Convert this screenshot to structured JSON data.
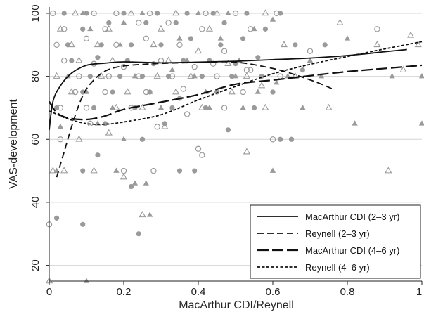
{
  "chart_data": {
    "type": "scatter",
    "xlabel": "MacArthur CDI/Reynell",
    "ylabel": "VAS-development",
    "xlim": [
      0,
      1
    ],
    "ylim": [
      15,
      102
    ],
    "xticks": [
      0,
      0.2,
      0.4,
      0.6,
      0.8,
      1
    ],
    "xtick_labels": [
      "0",
      "0.2",
      "0.4",
      "0.6",
      "0.8",
      "1"
    ],
    "yticks": [
      20,
      40,
      60,
      80,
      100
    ],
    "ytick_labels": [
      "20",
      "40",
      "60",
      "80",
      "100"
    ],
    "grid": "horizontal",
    "legend_position": "bottom-right",
    "colors": {
      "points": "#9a9a9a",
      "lines": "#111111",
      "grid": "#d4d4d4"
    },
    "marker_groups": [
      {
        "marker": "filled-circle",
        "points": [
          [
            0.04,
            100
          ],
          [
            0.1,
            100
          ],
          [
            0.2,
            100
          ],
          [
            0.29,
            100
          ],
          [
            0.37,
            100
          ],
          [
            0.44,
            100
          ],
          [
            0.53,
            100
          ],
          [
            0.62,
            100
          ],
          [
            0.09,
            95
          ],
          [
            0.16,
            97
          ],
          [
            0.26,
            97
          ],
          [
            0.34,
            97
          ],
          [
            0.47,
            97
          ],
          [
            0.58,
            95
          ],
          [
            0.05,
            90
          ],
          [
            0.14,
            90
          ],
          [
            0.22,
            90
          ],
          [
            0.3,
            90
          ],
          [
            0.38,
            92
          ],
          [
            0.46,
            90
          ],
          [
            0.52,
            92
          ],
          [
            0.66,
            90
          ],
          [
            0.74,
            90
          ],
          [
            0.06,
            85
          ],
          [
            0.13,
            86
          ],
          [
            0.21,
            85
          ],
          [
            0.28,
            84
          ],
          [
            0.36,
            85
          ],
          [
            0.43,
            85
          ],
          [
            0.5,
            84
          ],
          [
            0.56,
            86
          ],
          [
            0.11,
            80
          ],
          [
            0.19,
            80
          ],
          [
            0.25,
            80
          ],
          [
            0.32,
            80
          ],
          [
            0.41,
            80
          ],
          [
            0.49,
            80
          ],
          [
            0.57,
            80
          ],
          [
            0.68,
            82
          ],
          [
            0.09,
            75
          ],
          [
            0.17,
            75
          ],
          [
            0.27,
            75
          ],
          [
            0.35,
            73
          ],
          [
            0.45,
            75
          ],
          [
            0.6,
            75
          ],
          [
            0.02,
            70
          ],
          [
            0.12,
            70
          ],
          [
            0.23,
            70
          ],
          [
            0.33,
            70
          ],
          [
            0.42,
            70
          ],
          [
            0.55,
            70
          ],
          [
            0.15,
            65
          ],
          [
            0.31,
            65
          ],
          [
            0.48,
            63
          ],
          [
            0.65,
            60
          ],
          [
            0.25,
            60
          ],
          [
            0.13,
            55
          ],
          [
            0.39,
            50
          ],
          [
            0.09,
            50
          ],
          [
            0.22,
            45
          ],
          [
            0.09,
            33
          ],
          [
            0.24,
            30
          ],
          [
            0.02,
            35
          ],
          [
            0.35,
            50
          ],
          [
            0.62,
            60
          ]
        ]
      },
      {
        "marker": "open-circle",
        "points": [
          [
            0.01,
            100
          ],
          [
            0.12,
            100
          ],
          [
            0.18,
            100
          ],
          [
            0.27,
            100
          ],
          [
            0.42,
            100
          ],
          [
            0.5,
            100
          ],
          [
            0.61,
            100
          ],
          [
            0.04,
            95
          ],
          [
            0.15,
            95
          ],
          [
            0.24,
            97
          ],
          [
            0.32,
            97
          ],
          [
            0.41,
            95
          ],
          [
            0.54,
            95
          ],
          [
            0.88,
            95
          ],
          [
            0.02,
            90
          ],
          [
            0.1,
            92
          ],
          [
            0.18,
            90
          ],
          [
            0.26,
            92
          ],
          [
            0.35,
            90
          ],
          [
            0.47,
            88
          ],
          [
            0.7,
            88
          ],
          [
            0.04,
            85
          ],
          [
            0.12,
            84
          ],
          [
            0.2,
            83
          ],
          [
            0.3,
            85
          ],
          [
            0.39,
            83
          ],
          [
            0.44,
            84
          ],
          [
            0.53,
            82
          ],
          [
            0.08,
            80
          ],
          [
            0.16,
            80
          ],
          [
            0.24,
            80
          ],
          [
            0.33,
            80
          ],
          [
            0.45,
            80
          ],
          [
            0.54,
            82
          ],
          [
            0.62,
            80
          ],
          [
            0.07,
            75
          ],
          [
            0.15,
            75
          ],
          [
            0.26,
            75
          ],
          [
            0.36,
            76
          ],
          [
            0.52,
            75
          ],
          [
            0.03,
            70
          ],
          [
            0.1,
            70
          ],
          [
            0.22,
            70
          ],
          [
            0.37,
            68
          ],
          [
            0.47,
            70
          ],
          [
            0.11,
            65
          ],
          [
            0.29,
            64
          ],
          [
            0.03,
            60
          ],
          [
            0.4,
            57
          ],
          [
            0.41,
            55
          ],
          [
            0.6,
            60
          ],
          [
            0.28,
            50
          ],
          [
            0.2,
            50
          ],
          [
            0.0,
            33
          ]
        ]
      },
      {
        "marker": "filled-triangle",
        "points": [
          [
            0.09,
            100
          ],
          [
            0.25,
            100
          ],
          [
            0.4,
            100
          ],
          [
            0.48,
            100
          ],
          [
            0.6,
            98
          ],
          [
            0.8,
            92
          ],
          [
            0.11,
            95
          ],
          [
            0.2,
            97
          ],
          [
            0.35,
            92
          ],
          [
            0.46,
            92
          ],
          [
            0.55,
            95
          ],
          [
            0.19,
            90
          ],
          [
            0.37,
            85
          ],
          [
            0.51,
            85
          ],
          [
            0.7,
            85
          ],
          [
            0.05,
            80
          ],
          [
            0.23,
            80
          ],
          [
            0.33,
            82
          ],
          [
            0.39,
            80
          ],
          [
            0.5,
            80
          ],
          [
            0.64,
            80
          ],
          [
            0.73,
            80
          ],
          [
            0.92,
            80
          ],
          [
            1.0,
            80
          ],
          [
            0.1,
            75
          ],
          [
            0.27,
            75
          ],
          [
            0.42,
            75
          ],
          [
            0.56,
            75
          ],
          [
            0.61,
            78
          ],
          [
            0.17,
            70
          ],
          [
            0.3,
            70
          ],
          [
            0.43,
            70
          ],
          [
            0.52,
            70
          ],
          [
            0.68,
            70
          ],
          [
            0.03,
            64
          ],
          [
            0.13,
            65
          ],
          [
            0.2,
            60
          ],
          [
            0.02,
            50
          ],
          [
            0.18,
            50
          ],
          [
            0.26,
            46
          ],
          [
            0.23,
            46
          ],
          [
            0.6,
            50
          ],
          [
            0.82,
            65
          ],
          [
            0.27,
            36
          ],
          [
            0.1,
            15
          ],
          [
            1.0,
            65
          ]
        ]
      },
      {
        "marker": "open-triangle",
        "points": [
          [
            0.07,
            100
          ],
          [
            0.22,
            100
          ],
          [
            0.34,
            100
          ],
          [
            0.45,
            100
          ],
          [
            0.58,
            100
          ],
          [
            0.78,
            97
          ],
          [
            0.97,
            93
          ],
          [
            0.03,
            95
          ],
          [
            0.16,
            95
          ],
          [
            0.3,
            95
          ],
          [
            0.43,
            95
          ],
          [
            0.06,
            90
          ],
          [
            0.13,
            90
          ],
          [
            0.28,
            90
          ],
          [
            0.4,
            88
          ],
          [
            0.63,
            90
          ],
          [
            0.88,
            90
          ],
          [
            0.99,
            90
          ],
          [
            0.08,
            85
          ],
          [
            0.17,
            85
          ],
          [
            0.32,
            85
          ],
          [
            0.48,
            84
          ],
          [
            0.02,
            80
          ],
          [
            0.14,
            80
          ],
          [
            0.29,
            80
          ],
          [
            0.38,
            80
          ],
          [
            0.53,
            80
          ],
          [
            0.66,
            80
          ],
          [
            0.95,
            82
          ],
          [
            0.06,
            75
          ],
          [
            0.21,
            75
          ],
          [
            0.34,
            75
          ],
          [
            0.49,
            75
          ],
          [
            0.57,
            77
          ],
          [
            0.18,
            70
          ],
          [
            0.25,
            70
          ],
          [
            0.41,
            70
          ],
          [
            0.58,
            70
          ],
          [
            0.75,
            70
          ],
          [
            0.08,
            60
          ],
          [
            0.31,
            64
          ],
          [
            0.16,
            62
          ],
          [
            0.01,
            50
          ],
          [
            0.04,
            50
          ],
          [
            0.12,
            50
          ],
          [
            0.53,
            56
          ],
          [
            0.91,
            50
          ],
          [
            0.25,
            36
          ],
          [
            0.0,
            15
          ],
          [
            0.2,
            48
          ]
        ]
      }
    ],
    "series": [
      {
        "name": "MacArthur CDI  (2–3 yr)",
        "dash": "solid",
        "x": [
          0.0,
          0.01,
          0.03,
          0.06,
          0.1,
          0.15,
          0.2,
          0.3,
          0.4,
          0.5,
          0.6,
          0.7,
          0.8,
          0.9,
          0.96
        ],
        "y": [
          63,
          72,
          77,
          81,
          83.5,
          84.2,
          84.6,
          84.3,
          84.5,
          84.8,
          85.3,
          85.8,
          86.6,
          87.8,
          88.5
        ]
      },
      {
        "name": "Reynell  (2–3 yr)",
        "dash": "dash",
        "x": [
          0.02,
          0.04,
          0.06,
          0.08,
          0.1,
          0.13,
          0.16,
          0.2,
          0.25,
          0.3,
          0.4,
          0.5,
          0.6,
          0.66,
          0.72,
          0.76
        ],
        "y": [
          48,
          56,
          64,
          71,
          76,
          80,
          82.2,
          83.3,
          83.8,
          84.1,
          84.4,
          84.5,
          82.5,
          80.5,
          78,
          76
        ]
      },
      {
        "name": "MacArthur CDI  (4–6 yr)",
        "dash": "longdash",
        "x": [
          0.0,
          0.02,
          0.05,
          0.1,
          0.15,
          0.2,
          0.3,
          0.4,
          0.5,
          0.6,
          0.7,
          0.8,
          0.9,
          1.0
        ],
        "y": [
          72,
          68.5,
          66.8,
          66.3,
          67.4,
          69.5,
          71.8,
          74.2,
          77.5,
          78.8,
          80.2,
          81.5,
          82.5,
          83.5
        ]
      },
      {
        "name": "Reynell  (4–6 yr)",
        "dash": "dot",
        "x": [
          0.0,
          0.02,
          0.05,
          0.1,
          0.15,
          0.2,
          0.3,
          0.4,
          0.5,
          0.6,
          0.7,
          0.8,
          0.9,
          1.0
        ],
        "y": [
          69,
          68,
          66.5,
          65,
          64.8,
          65.5,
          67.8,
          72.5,
          76.8,
          80.8,
          83.8,
          86.3,
          88.7,
          91
        ]
      }
    ]
  }
}
